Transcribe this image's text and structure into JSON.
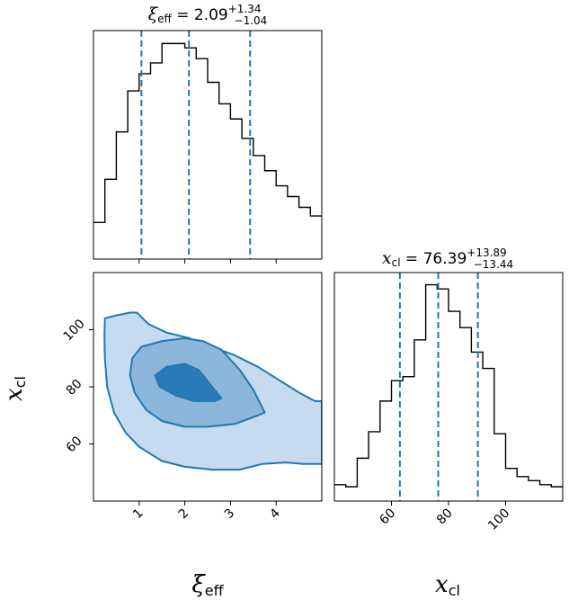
{
  "colors": {
    "quantile": "#1f77b4",
    "contour_edge": "#1f77b4",
    "levels": [
      "#c6dbef",
      "#8cb6da",
      "#2a7ab8"
    ],
    "hist": "#000000"
  },
  "titles": {
    "xi": {
      "symbol": "ξ",
      "sub": "eff",
      "eq": " = ",
      "value": "2.09",
      "plus": "+1.34",
      "minus": "−1.04"
    },
    "x": {
      "symbol": "x",
      "sub": "cl",
      "eq": " = ",
      "value": "76.39",
      "plus": "+13.89",
      "minus": "−13.44"
    }
  },
  "labels": {
    "xi": {
      "symbol": "ξ",
      "sub": "eff"
    },
    "x": {
      "symbol": "x",
      "sub": "cl"
    }
  },
  "chart_data": [
    {
      "type": "histogram",
      "panel": "xi_eff marginal",
      "xlim": [
        0.0,
        5.0
      ],
      "ylim": [
        0,
        1.06
      ],
      "xticks": [
        1,
        2,
        3,
        4
      ],
      "bins": [
        0.0,
        0.25,
        0.5,
        0.75,
        1.0,
        1.25,
        1.5,
        1.75,
        2.0,
        2.25,
        2.5,
        2.75,
        3.0,
        3.25,
        3.5,
        3.75,
        4.0,
        4.25,
        4.5,
        4.75,
        5.0
      ],
      "counts": [
        0.17,
        0.37,
        0.59,
        0.78,
        0.86,
        0.91,
        1.0,
        1.0,
        0.98,
        0.93,
        0.82,
        0.72,
        0.65,
        0.56,
        0.48,
        0.41,
        0.34,
        0.29,
        0.24,
        0.2
      ],
      "quantiles": [
        1.05,
        2.09,
        3.43
      ]
    },
    {
      "type": "contour",
      "panel": "xi_eff vs x_cl joint",
      "xlim": [
        0.0,
        5.0
      ],
      "ylim": [
        40,
        120
      ],
      "xticks": [
        1,
        2,
        3,
        4
      ],
      "yticks": [
        60,
        80,
        100
      ],
      "levels": [
        {
          "points": [
            [
              0.25,
              104
            ],
            [
              0.5,
              105
            ],
            [
              0.8,
              106
            ],
            [
              0.95,
              106
            ],
            [
              1.2,
              102
            ],
            [
              1.6,
              99
            ],
            [
              2.1,
              97
            ],
            [
              2.6,
              94
            ],
            [
              3.1,
              91
            ],
            [
              3.6,
              87
            ],
            [
              4.1,
              82
            ],
            [
              4.5,
              78
            ],
            [
              4.85,
              75
            ],
            [
              5.0,
              75
            ],
            [
              5.0,
              53
            ],
            [
              4.6,
              53
            ],
            [
              4.2,
              53.5
            ],
            [
              3.7,
              53
            ],
            [
              3.2,
              51
            ],
            [
              2.6,
              51
            ],
            [
              2.0,
              52
            ],
            [
              1.5,
              54
            ],
            [
              1.0,
              59
            ],
            [
              0.7,
              64
            ],
            [
              0.45,
              71
            ],
            [
              0.3,
              80
            ],
            [
              0.25,
              90
            ],
            [
              0.24,
              98
            ]
          ]
        },
        {
          "points": [
            [
              0.85,
              90
            ],
            [
              1.05,
              94
            ],
            [
              1.5,
              96
            ],
            [
              2.0,
              97
            ],
            [
              2.4,
              96
            ],
            [
              2.8,
              93
            ],
            [
              3.2,
              86
            ],
            [
              3.5,
              79
            ],
            [
              3.75,
              71
            ],
            [
              3.6,
              70
            ],
            [
              3.1,
              67
            ],
            [
              2.5,
              66
            ],
            [
              2.0,
              66
            ],
            [
              1.5,
              68
            ],
            [
              1.15,
              72
            ],
            [
              0.9,
              78
            ],
            [
              0.8,
              84
            ]
          ]
        },
        {
          "points": [
            [
              1.35,
              84
            ],
            [
              1.6,
              87
            ],
            [
              2.0,
              88
            ],
            [
              2.3,
              86
            ],
            [
              2.5,
              82
            ],
            [
              2.8,
              76
            ],
            [
              2.65,
              75
            ],
            [
              2.2,
              75
            ],
            [
              1.8,
              77
            ],
            [
              1.45,
              80
            ]
          ]
        }
      ]
    },
    {
      "type": "histogram",
      "panel": "x_cl marginal",
      "xlim": [
        40,
        120
      ],
      "ylim": [
        0,
        1.12
      ],
      "xticks": [
        60,
        80,
        100
      ],
      "bins": [
        40,
        44,
        48,
        52,
        56,
        60,
        64,
        68,
        72,
        76,
        80,
        84,
        88,
        92,
        96,
        100,
        104,
        108,
        112,
        116,
        120
      ],
      "counts": [
        0.08,
        0.07,
        0.21,
        0.34,
        0.49,
        0.59,
        0.61,
        0.79,
        1.06,
        1.04,
        0.93,
        0.85,
        0.73,
        0.65,
        0.33,
        0.16,
        0.12,
        0.1,
        0.08,
        0.07
      ],
      "quantiles": [
        62.95,
        76.39,
        90.28
      ]
    }
  ]
}
